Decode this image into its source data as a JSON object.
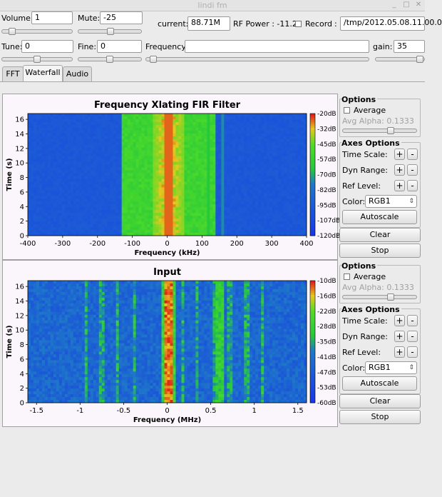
{
  "window": {
    "title": "lindi fm"
  },
  "controls": {
    "volume_label": "Volume:",
    "volume_value": "1",
    "mute_label": "Mute:",
    "mute_value": "-25",
    "current_label": "current:",
    "current_value": "88.71M",
    "rf_power_label": "RF Power : -11.2",
    "record_label": "Record",
    "record_path_label": ":",
    "record_path": "/tmp/2012.05.08.11.00.0",
    "tune_label": "Tune:",
    "tune_value": "0",
    "fine_label": "Fine:",
    "fine_value": "0",
    "frequency_label": "Frequency:",
    "frequency_value": "",
    "gain_label": "gain:",
    "gain_value": "35"
  },
  "tabs": [
    {
      "label": "FFT",
      "active": false
    },
    {
      "label": "Waterfall",
      "active": true
    },
    {
      "label": "Audio",
      "active": false
    }
  ],
  "plots": [
    {
      "title": "Frequency Xlating FIR Filter",
      "ylabel": "Time (s)",
      "xlabel": "Frequency (kHz)",
      "xticks": [
        "-400",
        "-300",
        "-200",
        "-100",
        "0",
        "100",
        "200",
        "300",
        "400"
      ],
      "yticks": [
        "0",
        "2",
        "4",
        "6",
        "8",
        "10",
        "12",
        "14",
        "16"
      ],
      "cbar": [
        "-20dB",
        "-32dB",
        "-45dB",
        "-57dB",
        "-70dB",
        "-82dB",
        "-95dB",
        "-107dB",
        "-120dB"
      ],
      "options": {
        "title": "Options",
        "average": "Average",
        "avg_alpha": "Avg Alpha: 0.1333",
        "axes_title": "Axes Options",
        "time_scale": "Time Scale:",
        "dyn_range": "Dyn Range:",
        "ref_level": "Ref Level:",
        "color": "Color:",
        "color_value": "RGB1",
        "autoscale": "Autoscale",
        "clear": "Clear",
        "stop": "Stop",
        "plus": "+",
        "minus": "-"
      }
    },
    {
      "title": "Input",
      "ylabel": "Time (s)",
      "xlabel": "Frequency (MHz)",
      "xticks": [
        "-1.5",
        "-1",
        "-0.5",
        "0",
        "0.5",
        "1",
        "1.5"
      ],
      "yticks": [
        "0",
        "2",
        "4",
        "6",
        "8",
        "10",
        "12",
        "14",
        "16"
      ],
      "cbar": [
        "-10dB",
        "-16dB",
        "-22dB",
        "-28dB",
        "-35dB",
        "-41dB",
        "-47dB",
        "-53dB",
        "-60dB"
      ],
      "options": {
        "title": "Options",
        "average": "Average",
        "avg_alpha": "Avg Alpha: 0.1333",
        "axes_title": "Axes Options",
        "time_scale": "Time Scale:",
        "dyn_range": "Dyn Range:",
        "ref_level": "Ref Level:",
        "color": "Color:",
        "color_value": "RGB1",
        "autoscale": "Autoscale",
        "clear": "Clear",
        "stop": "Stop",
        "plus": "+",
        "minus": "-"
      }
    }
  ],
  "colors": {
    "wf_low": "#1a3be6",
    "wf_mid": "#2fd02f",
    "wf_high": "#e02020"
  }
}
